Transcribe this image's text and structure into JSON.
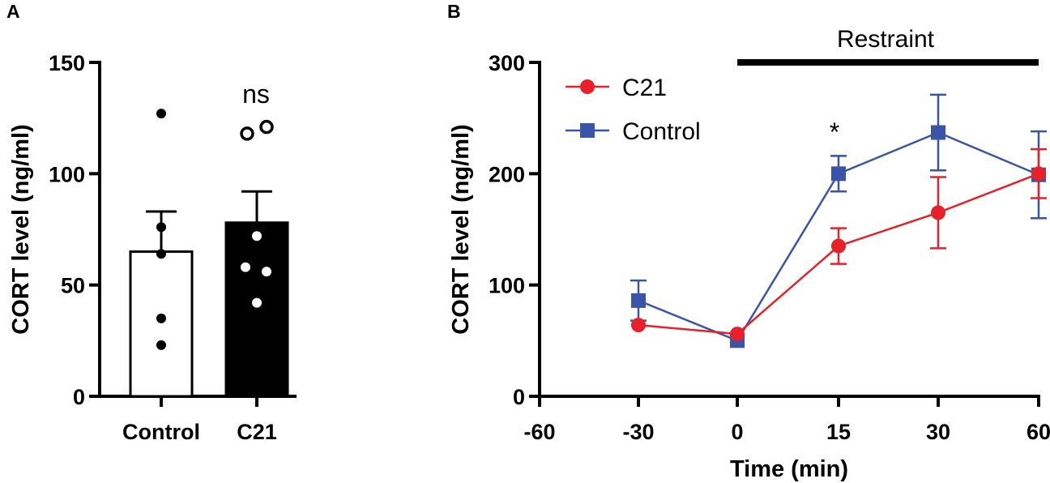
{
  "chart_data": [
    {
      "panel": "A",
      "type": "bar",
      "title": "",
      "xlabel": "",
      "ylabel": "CORT level (ng/ml)",
      "ylim": [
        0,
        150
      ],
      "yticks": [
        0,
        50,
        100,
        150
      ],
      "categories": [
        "Control",
        "C21"
      ],
      "values": [
        65,
        78
      ],
      "errors": [
        18,
        14
      ],
      "bar_colors": [
        "#ffffff",
        "#000000"
      ],
      "points": {
        "Control": [
          127,
          76,
          64,
          35,
          23
        ],
        "C21": [
          72,
          58,
          56,
          42
        ]
      },
      "outliers": {
        "C21": [
          118,
          121
        ]
      },
      "annotation": "ns"
    },
    {
      "panel": "B",
      "type": "line",
      "title": "",
      "xlabel": "Time (min)",
      "ylabel": "CORT level (ng/ml)",
      "xlim": [
        -60,
        60
      ],
      "ylim": [
        0,
        300
      ],
      "xtick_labels": [
        "-60",
        "-30",
        "0",
        "15",
        "30",
        "60"
      ],
      "yticks": [
        0,
        100,
        200,
        300
      ],
      "restraint_label": "Restraint",
      "significance_mark": "*",
      "series": [
        {
          "name": "C21",
          "color": "#e8202a",
          "marker": "circle",
          "values": [
            64,
            56,
            135,
            165,
            200
          ],
          "errors": [
            0,
            0,
            16,
            32,
            22
          ]
        },
        {
          "name": "Control",
          "color": "#3a55a8",
          "marker": "square",
          "values": [
            86,
            50,
            200,
            237,
            199
          ],
          "errors": [
            18,
            0,
            16,
            34,
            39
          ]
        }
      ],
      "legend": [
        "C21",
        "Control"
      ]
    }
  ]
}
